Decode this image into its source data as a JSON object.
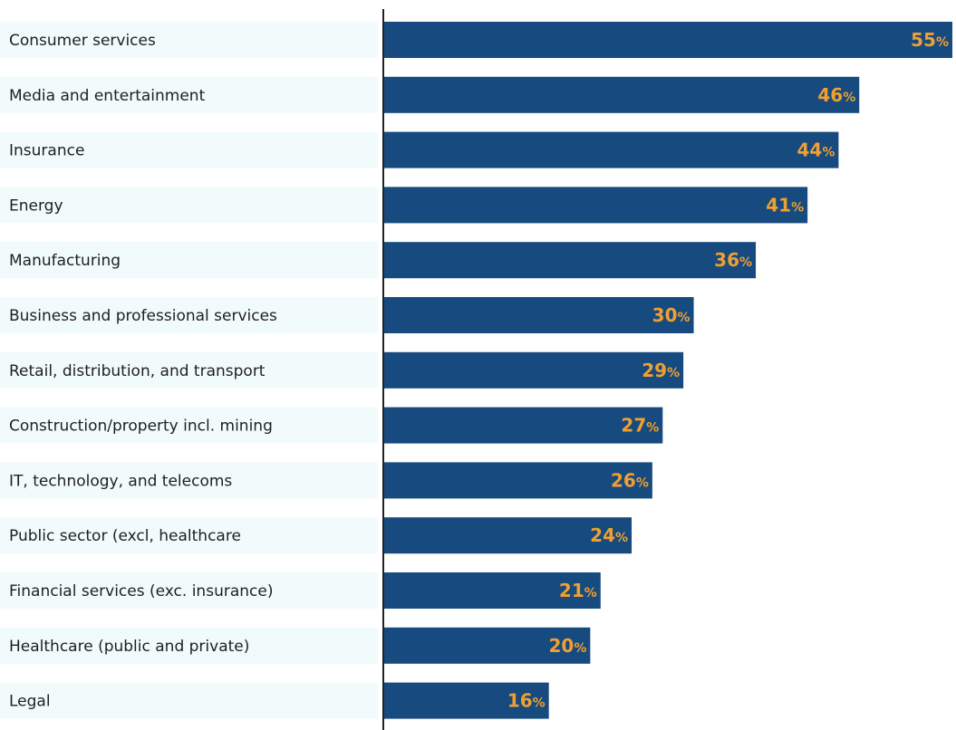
{
  "chart_data": {
    "type": "bar",
    "orientation": "horizontal",
    "categories": [
      "Consumer services",
      "Media and entertainment",
      "Insurance",
      "Energy",
      "Manufacturing",
      "Business and professional services",
      "Retail, distribution, and transport",
      "Construction/property incl. mining",
      "IT, technology, and telecoms",
      "Public sector (excl, healthcare",
      "Financial services (exc. insurance)",
      "Healthcare (public and private)",
      "Legal"
    ],
    "values": [
      55,
      46,
      44,
      41,
      36,
      30,
      29,
      27,
      26,
      24,
      21,
      20,
      16
    ],
    "value_suffix": "%",
    "xlim": [
      0,
      55
    ],
    "title": "",
    "xlabel": "",
    "ylabel": "",
    "grid": false,
    "colors": {
      "bar": "#174a7e",
      "value_label": "#f0a030",
      "label_band": "#f2fbfc",
      "category_text": "#1f1f1f",
      "axis": "#222222"
    }
  }
}
